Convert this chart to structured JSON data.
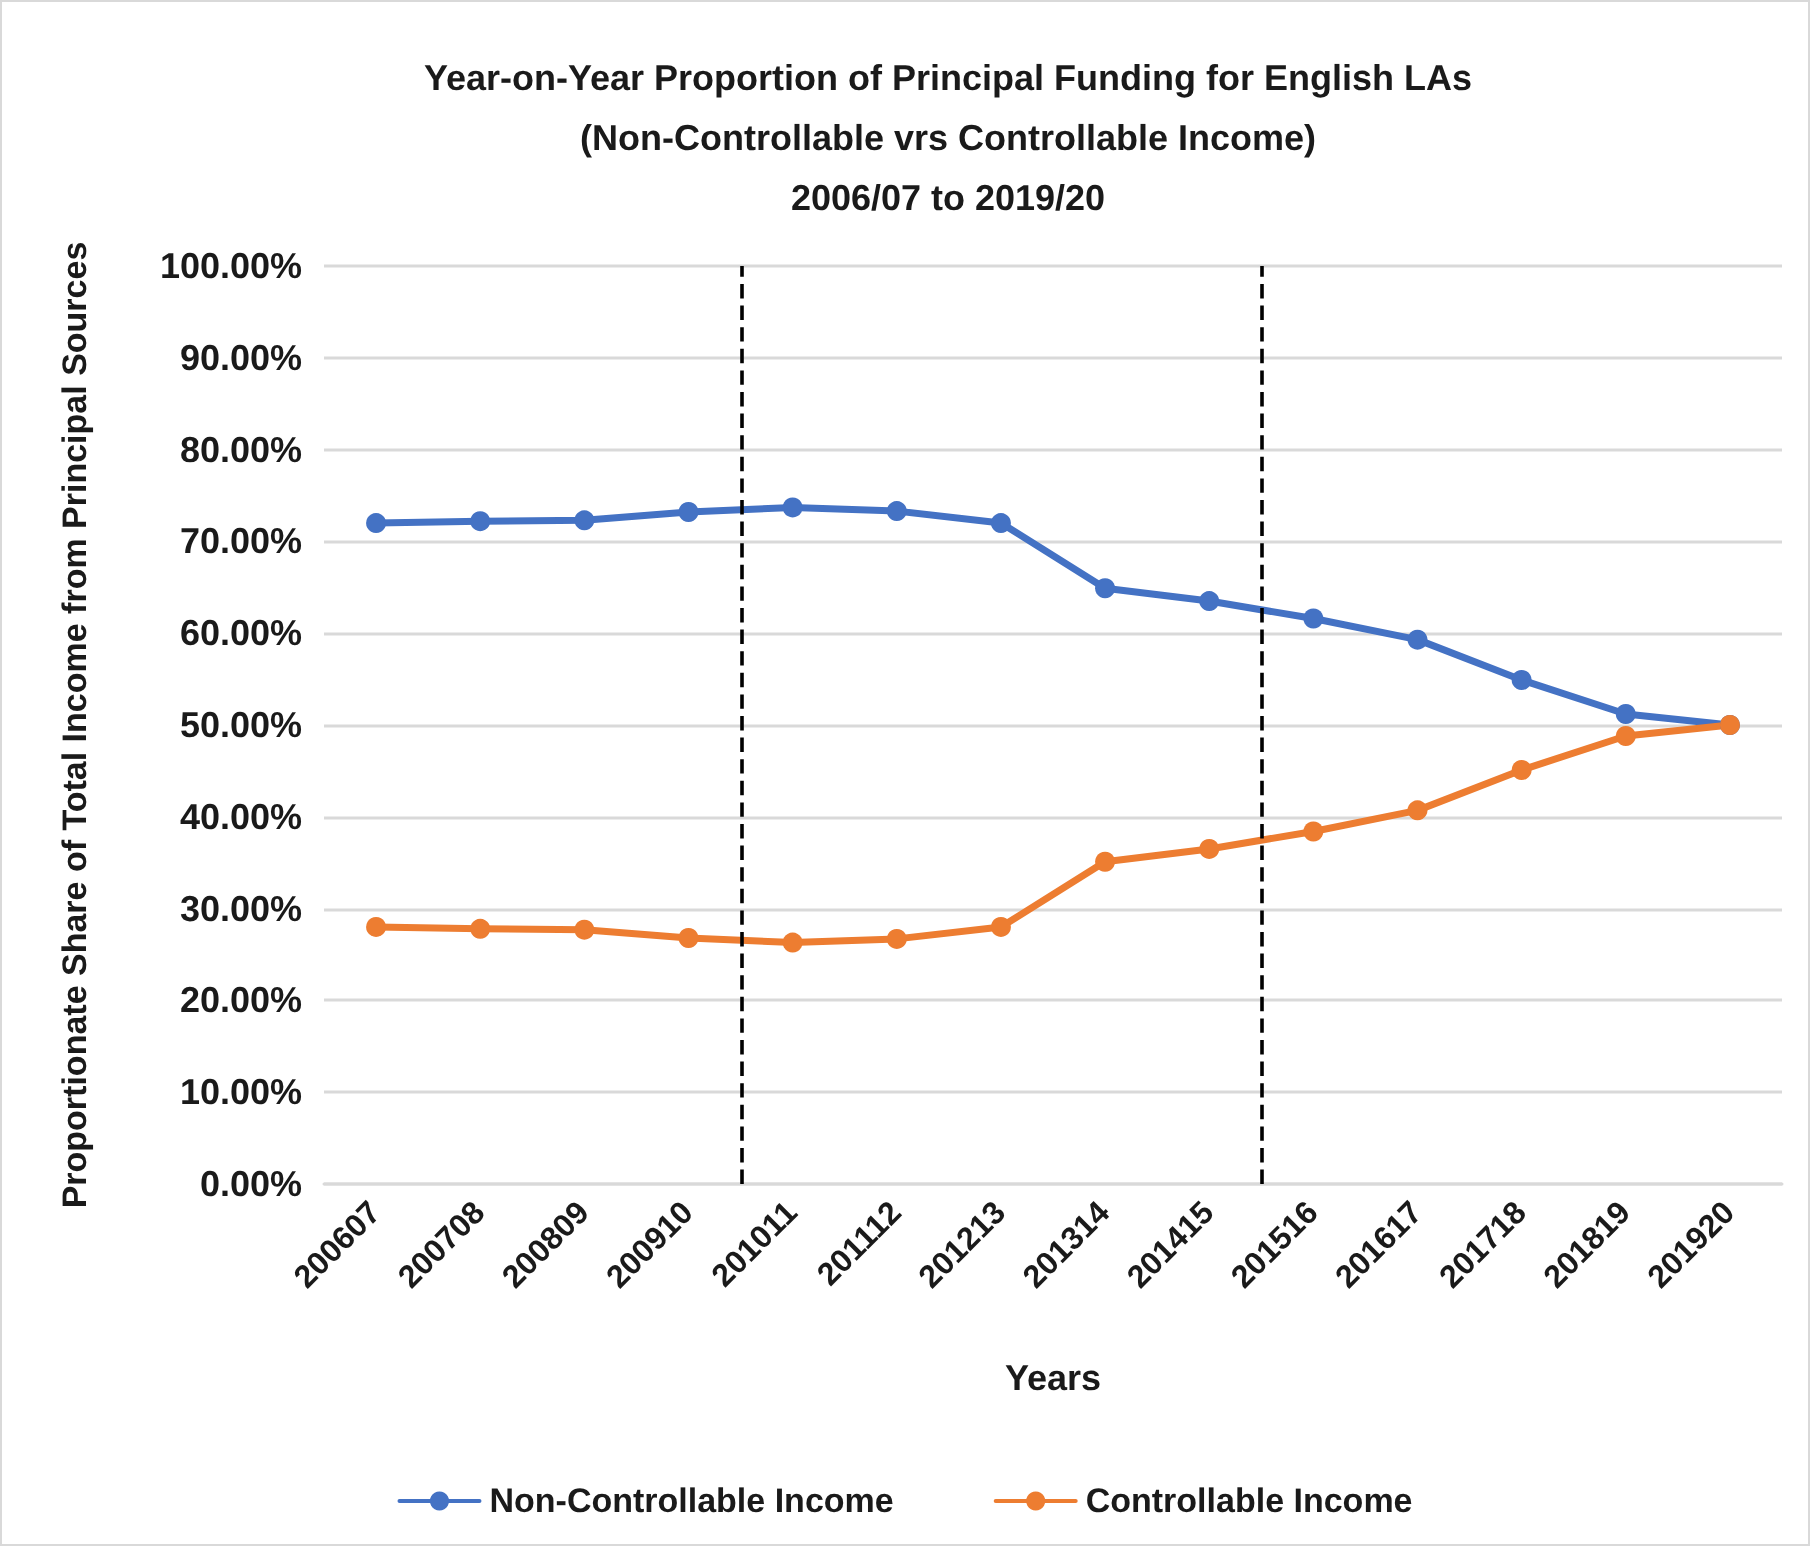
{
  "chart_data": {
    "type": "line",
    "title": "Year-on-Year Proportion of Principal Funding for English LAs\n(Non-Controllable vrs Controllable Income)\n2006/07 to 2019/20",
    "xlabel": "Years",
    "ylabel": "Proportionate Share of Total Income from Principal Sources",
    "categories": [
      "200607",
      "200708",
      "200809",
      "200910",
      "201011",
      "201112",
      "201213",
      "201314",
      "201415",
      "201516",
      "201617",
      "201718",
      "201819",
      "201920"
    ],
    "series": [
      {
        "name": "Non-Controllable Income",
        "color": "#4472c4",
        "values": [
          72.0,
          72.2,
          72.3,
          73.2,
          73.7,
          73.3,
          72.0,
          64.9,
          63.5,
          61.6,
          59.3,
          54.9,
          51.2,
          50.0
        ]
      },
      {
        "name": "Controllable Income",
        "color": "#ed7d31",
        "values": [
          28.0,
          27.8,
          27.7,
          26.8,
          26.3,
          26.7,
          28.0,
          35.1,
          36.5,
          38.4,
          40.7,
          45.1,
          48.8,
          50.0
        ]
      }
    ],
    "ylim": [
      0,
      100
    ],
    "yticks": [
      {
        "value": 0,
        "label": "0.00%"
      },
      {
        "value": 10,
        "label": "10.00%"
      },
      {
        "value": 20,
        "label": "20.00%"
      },
      {
        "value": 30,
        "label": "30.00%"
      },
      {
        "value": 40,
        "label": "40.00%"
      },
      {
        "value": 50,
        "label": "50.00%"
      },
      {
        "value": 60,
        "label": "60.00%"
      },
      {
        "value": 70,
        "label": "70.00%"
      },
      {
        "value": 80,
        "label": "80.00%"
      },
      {
        "value": 90,
        "label": "90.00%"
      },
      {
        "value": 100,
        "label": "100.00%"
      }
    ],
    "ref_lines": [
      {
        "axis": "x",
        "value": "201011",
        "color": "#000000",
        "line_style": "dashed"
      },
      {
        "axis": "x",
        "value": "201516",
        "color": "#000000",
        "line_style": "dashed"
      }
    ],
    "grid": "y",
    "legend": "bottom",
    "marker": "circle",
    "line_style": "solid"
  }
}
